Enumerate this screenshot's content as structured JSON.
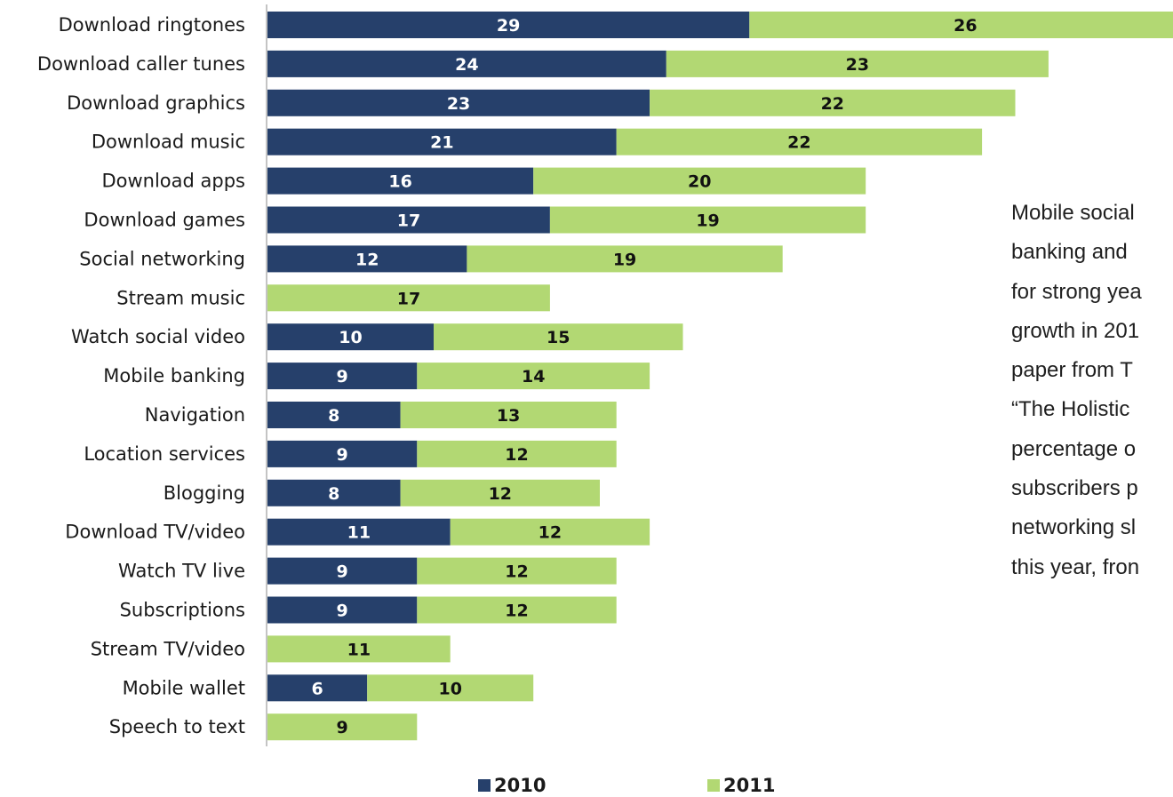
{
  "chart_data": {
    "type": "bar",
    "orientation": "horizontal",
    "stacked": true,
    "categories": [
      "Download ringtones",
      "Download caller tunes",
      "Download graphics",
      "Download music",
      "Download apps",
      "Download games",
      "Social networking",
      "Stream music",
      "Watch social video",
      "Mobile banking",
      "Navigation",
      "Location services",
      "Blogging",
      "Download TV/video",
      "Watch TV live",
      "Subscriptions",
      "Stream TV/video",
      "Mobile wallet",
      "Speech to text"
    ],
    "series": [
      {
        "name": "2010",
        "color": "#26406B",
        "values": [
          29,
          24,
          23,
          21,
          16,
          17,
          12,
          null,
          10,
          9,
          8,
          9,
          8,
          11,
          9,
          9,
          null,
          6,
          null
        ]
      },
      {
        "name": "2011",
        "color": "#B2D873",
        "values": [
          26,
          23,
          22,
          22,
          20,
          19,
          19,
          17,
          15,
          14,
          13,
          12,
          12,
          12,
          12,
          12,
          11,
          10,
          9
        ]
      }
    ],
    "legend_position": "bottom",
    "grid": false
  },
  "note_lines": [
    "Mobile social",
    "banking and",
    "for strong yea",
    "growth in 201",
    "paper from T",
    "“The Holistic",
    "percentage o",
    "subscribers p",
    "networking sl",
    "this year, fron"
  ]
}
